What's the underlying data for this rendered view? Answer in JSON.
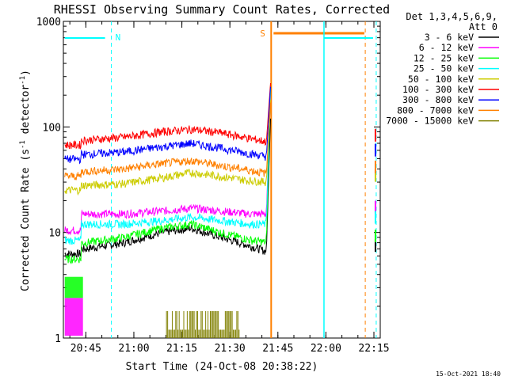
{
  "chart_data": {
    "type": "line",
    "title": "RHESSI Observing Summary Count Rates, Corrected",
    "xlabel": "Start Time (24-Oct-08 20:38:22)",
    "ylabel_main": "Corrected Count Rate (s",
    "ylabel_sup1": "-1",
    "ylabel_mid": " detector",
    "ylabel_sup2": "-1",
    "ylabel_end": ")",
    "yscale": "log",
    "ylim": [
      1,
      1000
    ],
    "xlim_minutes": [
      20.633,
      22.283
    ],
    "y_ticks": [
      {
        "value": 1,
        "label": "1"
      },
      {
        "value": 10,
        "label": "10"
      },
      {
        "value": 100,
        "label": "100"
      },
      {
        "value": 1000,
        "label": "1000"
      }
    ],
    "x_ticks": [
      {
        "value": 20.75,
        "label": "20:45"
      },
      {
        "value": 21.0,
        "label": "21:00"
      },
      {
        "value": 21.25,
        "label": "21:15"
      },
      {
        "value": 21.5,
        "label": "21:30"
      },
      {
        "value": 21.75,
        "label": "21:45"
      },
      {
        "value": 22.0,
        "label": "22:00"
      },
      {
        "value": 22.25,
        "label": "22:15"
      }
    ],
    "legend_header": [
      "Det 1,3,4,5,6,9,",
      "Att 0"
    ],
    "series": [
      {
        "name": "3 - 6 keV",
        "color": "#000000",
        "x": [
          20.75,
          20.95,
          21.15,
          21.3,
          21.45,
          21.6,
          21.7
        ],
        "y": [
          7,
          8,
          10,
          11,
          9,
          7.5,
          6.5
        ]
      },
      {
        "name": "6 - 12 keV",
        "color": "#ff00ff",
        "x": [
          20.75,
          20.95,
          21.15,
          21.3,
          21.45,
          21.6,
          21.7
        ],
        "y": [
          15,
          15,
          16,
          17,
          16,
          15,
          15
        ]
      },
      {
        "name": "12 - 25 keV",
        "color": "#00ff00",
        "x": [
          20.75,
          20.95,
          21.15,
          21.3,
          21.45,
          21.6,
          21.7
        ],
        "y": [
          8,
          9,
          11,
          12,
          10,
          8.5,
          8
        ]
      },
      {
        "name": "25 - 50 keV",
        "color": "#00ffff",
        "x": [
          20.75,
          20.95,
          21.15,
          21.3,
          21.45,
          21.6,
          21.7
        ],
        "y": [
          12,
          12,
          13,
          14,
          13,
          12,
          12
        ]
      },
      {
        "name": "50 - 100 keV",
        "color": "#cccc00",
        "x": [
          20.75,
          20.95,
          21.15,
          21.3,
          21.45,
          21.6,
          21.7
        ],
        "y": [
          28,
          29,
          33,
          37,
          34,
          31,
          30
        ]
      },
      {
        "name": "100 - 300 keV",
        "color": "#ff0000",
        "x": [
          20.75,
          20.95,
          21.15,
          21.3,
          21.45,
          21.6,
          21.7
        ],
        "y": [
          75,
          80,
          90,
          95,
          88,
          78,
          72
        ]
      },
      {
        "name": "300 - 800 keV",
        "color": "#0000ff",
        "x": [
          20.75,
          20.95,
          21.15,
          21.3,
          21.45,
          21.6,
          21.7
        ],
        "y": [
          55,
          58,
          65,
          70,
          63,
          56,
          52
        ]
      },
      {
        "name": "800 - 7000 keV",
        "color": "#ff8000",
        "x": [
          20.75,
          20.95,
          21.15,
          21.3,
          21.45,
          21.6,
          21.7
        ],
        "y": [
          38,
          40,
          45,
          48,
          43,
          39,
          36
        ]
      },
      {
        "name": "7000 - 15000 keV",
        "color": "#808000",
        "x": [
          21.2,
          21.35,
          21.5
        ],
        "y": [
          1.8,
          1.8,
          1.8
        ]
      }
    ],
    "markers": [
      {
        "label": "N",
        "color": "#00ffff"
      },
      {
        "label": "S",
        "color": "#ff8000"
      }
    ],
    "footer_date": "15-Oct-2021 18:40"
  }
}
